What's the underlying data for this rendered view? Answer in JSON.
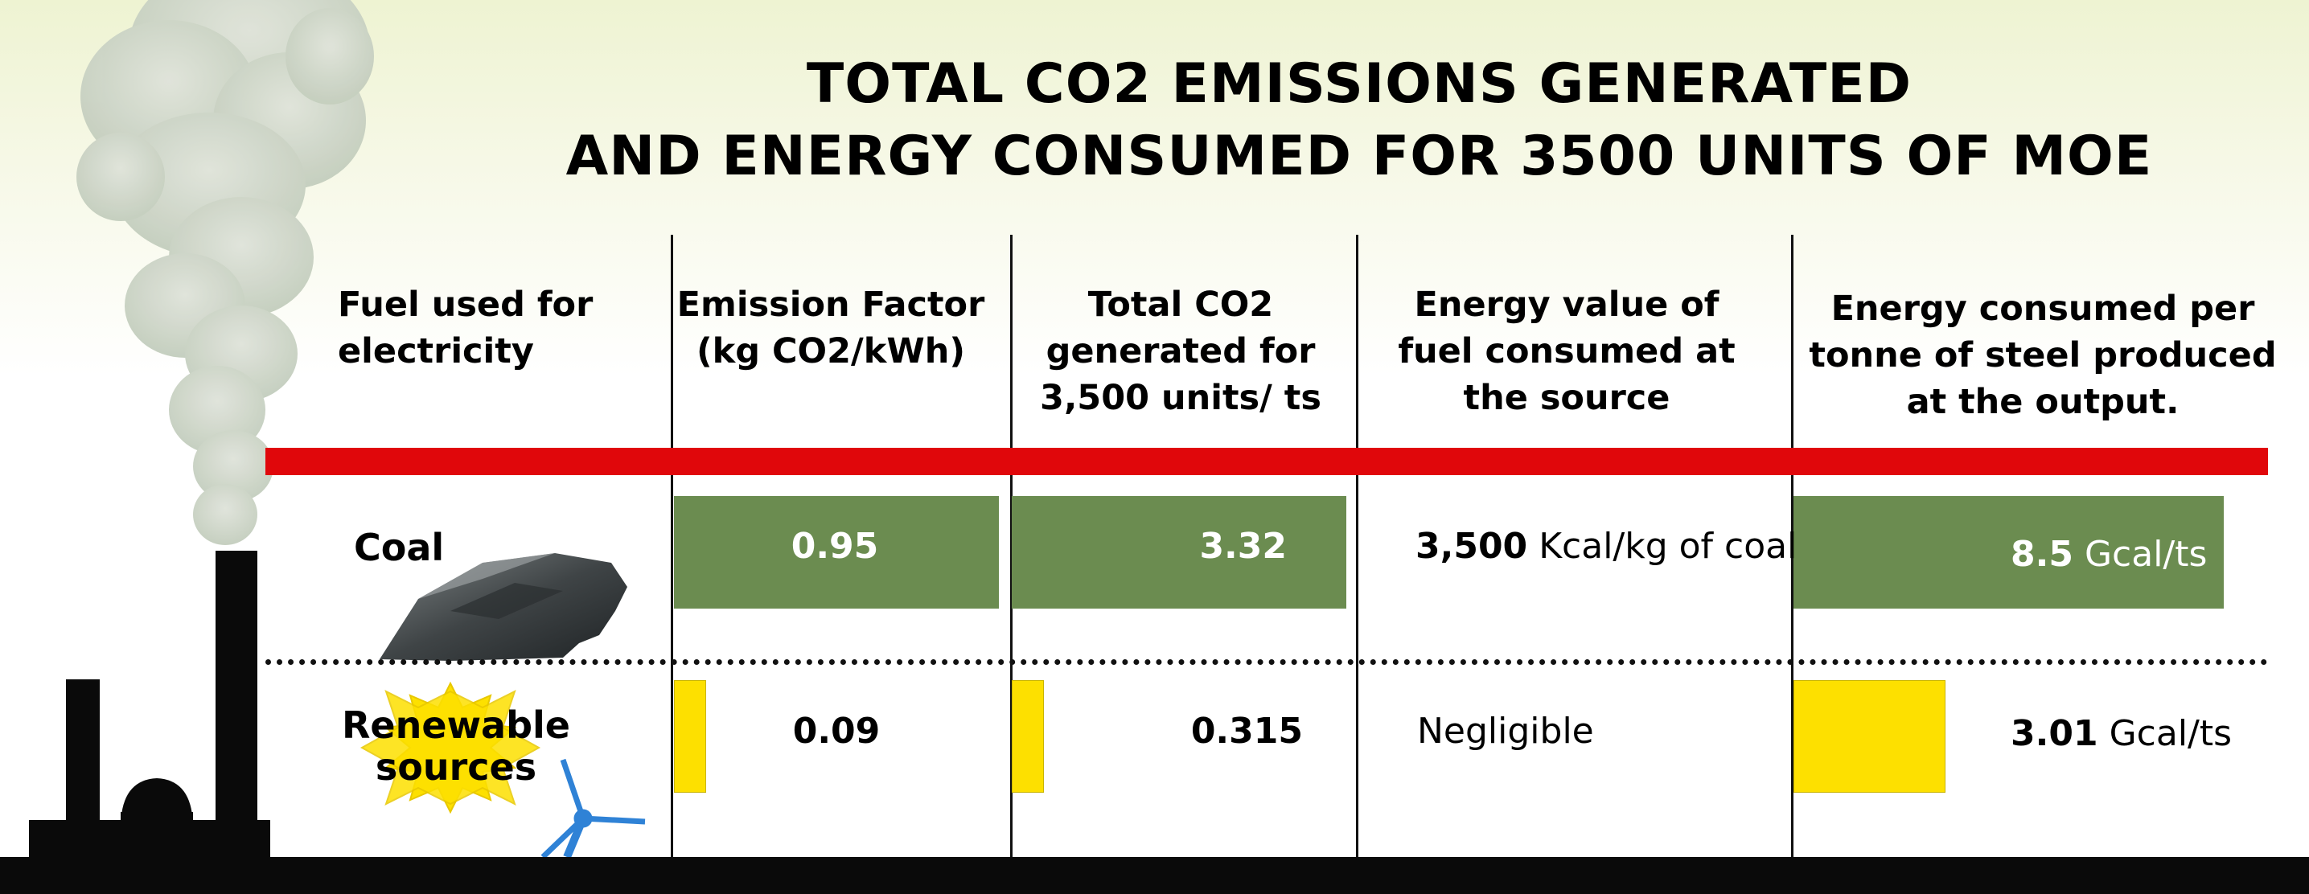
{
  "title_line1": "TOTAL CO2 EMISSIONS GENERATED",
  "title_line2": "AND ENERGY CONSUMED FOR 3500 UNITS OF MOE",
  "columns": [
    {
      "header_lines": [
        "Fuel used for",
        "electricity"
      ]
    },
    {
      "header_lines": [
        "Emission Factor",
        "(kg CO2/kWh)"
      ]
    },
    {
      "header_lines": [
        "Total CO2",
        "generated for",
        "3,500 units/ ts"
      ]
    },
    {
      "header_lines": [
        "Energy value of",
        "fuel consumed at",
        "the source"
      ]
    },
    {
      "header_lines": [
        "Energy consumed per",
        "tonne of steel produced",
        "at the output."
      ]
    }
  ],
  "rows": [
    {
      "label": "Coal",
      "emission_factor": "0.95",
      "total_co2": "3.32",
      "energy_value_number": "3,500",
      "energy_value_unit": "Kcal/kg of coal",
      "energy_consumed_number": "8.5",
      "energy_consumed_unit": "Gcal/ts"
    },
    {
      "label_lines": [
        "Renewable",
        "sources"
      ],
      "emission_factor": "0.09",
      "total_co2": "0.315",
      "energy_value_text": "Negligible",
      "energy_consumed_number": "3.01",
      "energy_consumed_unit": "Gcal/ts"
    }
  ],
  "chart_data": {
    "type": "bar",
    "title": "TOTAL CO2 EMISSIONS GENERATED AND ENERGY CONSUMED FOR 3500 UNITS OF MOE",
    "categories": [
      "Coal",
      "Renewable sources"
    ],
    "series": [
      {
        "name": "Emission Factor (kg CO2/kWh)",
        "values": [
          0.95,
          0.09
        ]
      },
      {
        "name": "Total CO2 generated for 3,500 units/ ts",
        "values": [
          3.32,
          0.315
        ]
      },
      {
        "name": "Energy consumed per tonne of steel produced at the output.",
        "values": [
          8.5,
          3.01
        ]
      }
    ],
    "colors": {
      "coal": "#6b8c50",
      "renewable": "#fde000",
      "divider": "#e0070b"
    }
  }
}
